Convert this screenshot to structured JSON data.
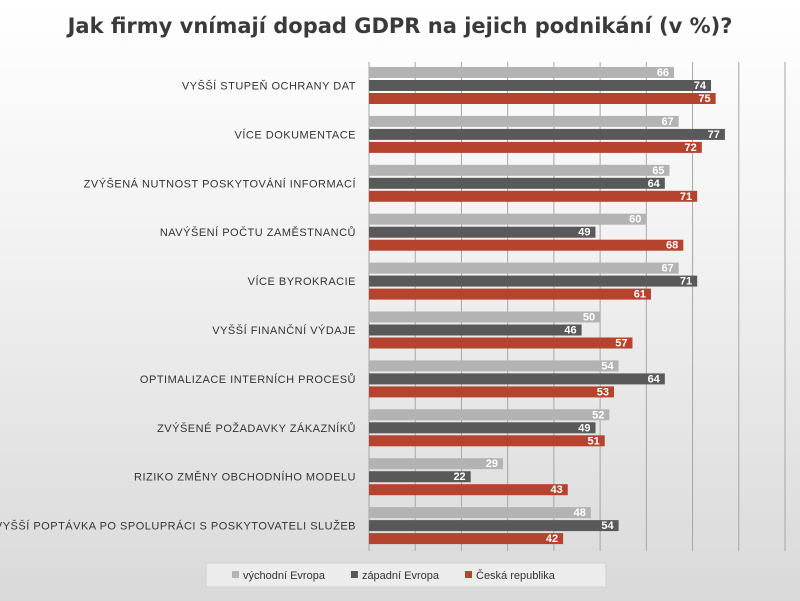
{
  "chart_data": {
    "type": "bar",
    "orientation": "horizontal",
    "title": "Jak firmy vnímají dopad GDPR na jejich podnikání (v %)?",
    "categories": [
      "VYŠŠÍ STUPEŇ OCHRANY DAT",
      "VÍCE DOKUMENTACE",
      "ZVÝŠENÁ NUTNOST POSKYTOVÁNÍ INFORMACÍ",
      "NAVÝŠENÍ POČTU ZAMĚSTNANCŮ",
      "VÍCE BYROKRACIE",
      "VYŠŠÍ FINANČNÍ VÝDAJE",
      "OPTIMALIZACE INTERNÍCH PROCESŮ",
      "ZVÝŠENÉ POŽADAVKY ZÁKAZNÍKŮ",
      "RIZIKO ZMĚNY OBCHODNÍHO MODELU",
      "VYŠŠÍ POPTÁVKA PO SPOLUPRÁCI S POSKYTOVATELI SLUŽEB"
    ],
    "series": [
      {
        "name": "východní Evropa",
        "color": "#b3b3b3",
        "values": [
          66,
          67,
          65,
          60,
          67,
          50,
          54,
          52,
          29,
          48
        ]
      },
      {
        "name": "západní Evropa",
        "color": "#595959",
        "values": [
          74,
          77,
          64,
          49,
          71,
          46,
          64,
          49,
          22,
          54
        ]
      },
      {
        "name": "Česká republika",
        "color": "#b5432e",
        "values": [
          75,
          72,
          71,
          68,
          61,
          57,
          53,
          51,
          43,
          42
        ]
      }
    ],
    "xlim": [
      0,
      90
    ],
    "grid": true,
    "legend_position": "bottom"
  }
}
